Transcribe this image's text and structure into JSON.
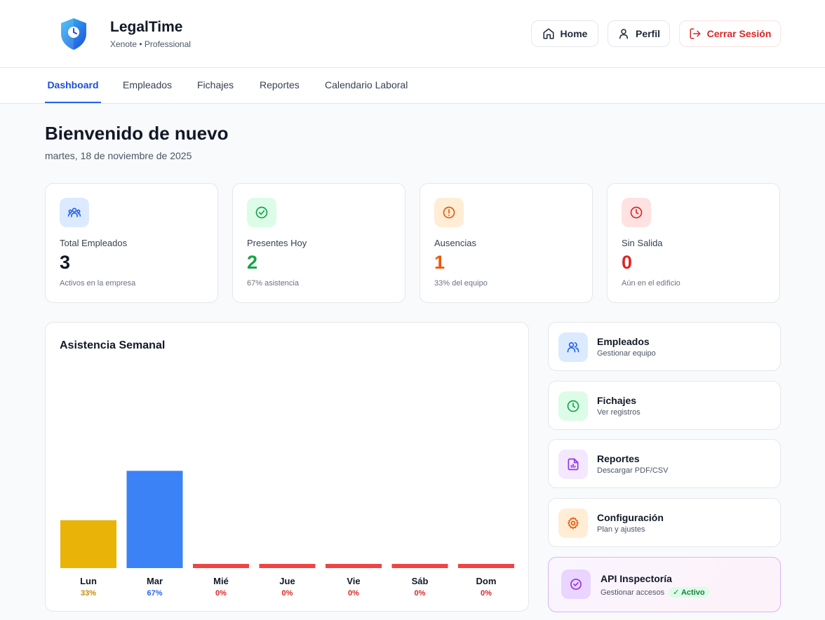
{
  "header": {
    "brand_title": "LegalTime",
    "brand_sub": "Xenote • Professional",
    "home_label": "Home",
    "perfil_label": "Perfil",
    "logout_label": "Cerrar Sesión"
  },
  "tabs": [
    {
      "label": "Dashboard",
      "active": true
    },
    {
      "label": "Empleados"
    },
    {
      "label": "Fichajes"
    },
    {
      "label": "Reportes"
    },
    {
      "label": "Calendario Laboral"
    }
  ],
  "welcome": {
    "title": "Bienvenido de nuevo",
    "date": "martes, 18 de noviembre de 2025"
  },
  "stats": [
    {
      "label": "Total Empleados",
      "value": "3",
      "note": "Activos en la empresa",
      "icon": "users-icon",
      "color": "#111827",
      "icon_bg": "#dbeafe",
      "icon_color": "#2563eb"
    },
    {
      "label": "Presentes Hoy",
      "value": "2",
      "note": "67% asistencia",
      "icon": "check-circle-icon",
      "color": "#16a34a",
      "icon_bg": "#dcfce7",
      "icon_color": "#16a34a"
    },
    {
      "label": "Ausencias",
      "value": "1",
      "note": "33% del equipo",
      "icon": "alert-circle-icon",
      "color": "#ea580c",
      "icon_bg": "#ffedd5",
      "icon_color": "#ea580c"
    },
    {
      "label": "Sin Salida",
      "value": "0",
      "note": "Aún en el edificio",
      "icon": "clock-icon",
      "color": "#dc2626",
      "icon_bg": "#fee2e2",
      "icon_color": "#dc2626"
    }
  ],
  "chart_data": {
    "type": "bar",
    "title": "Asistencia Semanal",
    "categories": [
      "Lun",
      "Mar",
      "Mié",
      "Jue",
      "Vie",
      "Sáb",
      "Dom"
    ],
    "values": [
      33,
      67,
      0,
      0,
      0,
      0,
      0
    ],
    "value_labels": [
      "33%",
      "67%",
      "0%",
      "0%",
      "0%",
      "0%",
      "0%"
    ],
    "ylim": [
      0,
      100
    ],
    "colors": [
      "#eab308",
      "#3b82f6",
      "#ef4444",
      "#ef4444",
      "#ef4444",
      "#ef4444",
      "#ef4444"
    ],
    "label_colors": [
      "#ca8a04",
      "#2563eb",
      "#dc2626",
      "#dc2626",
      "#dc2626",
      "#dc2626",
      "#dc2626"
    ]
  },
  "quick_links": [
    {
      "title": "Empleados",
      "sub": "Gestionar equipo",
      "icon": "users-icon",
      "icon_bg": "#dbeafe",
      "icon_color": "#2563eb"
    },
    {
      "title": "Fichajes",
      "sub": "Ver registros",
      "icon": "clock-icon",
      "icon_bg": "#dcfce7",
      "icon_color": "#16a34a"
    },
    {
      "title": "Reportes",
      "sub": "Descargar PDF/CSV",
      "icon": "report-icon",
      "icon_bg": "#f3e8ff",
      "icon_color": "#9333ea"
    },
    {
      "title": "Configuración",
      "sub": "Plan y ajustes",
      "icon": "gear-icon",
      "icon_bg": "#ffedd5",
      "icon_color": "#ea580c"
    },
    {
      "title": "API Inspectoría",
      "sub": "Gestionar accesos",
      "badge": "✓ Activo",
      "icon": "shield-check-icon",
      "icon_bg": "#e9d5ff",
      "icon_color": "#9333ea"
    }
  ]
}
